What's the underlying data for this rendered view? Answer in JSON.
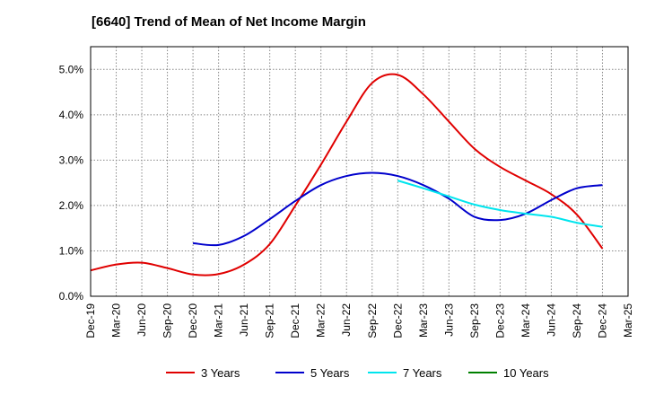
{
  "chart_data": {
    "type": "line",
    "title": "[6640]  Trend of Mean of Net Income Margin",
    "xlabel": "",
    "ylabel": "",
    "ylim": [
      0,
      5.5
    ],
    "y_ticks": [
      0,
      1,
      2,
      3,
      4,
      5
    ],
    "y_tick_labels": [
      "0.0%",
      "1.0%",
      "2.0%",
      "3.0%",
      "4.0%",
      "5.0%"
    ],
    "x_ticks": [
      "Dec-19",
      "Mar-20",
      "Jun-20",
      "Sep-20",
      "Dec-20",
      "Mar-21",
      "Jun-21",
      "Sep-21",
      "Dec-21",
      "Mar-22",
      "Jun-22",
      "Sep-22",
      "Dec-22",
      "Mar-23",
      "Jun-23",
      "Sep-23",
      "Dec-23",
      "Mar-24",
      "Jun-24",
      "Sep-24",
      "Dec-24",
      "Mar-25"
    ],
    "grid": true,
    "legend_position": "bottom",
    "series": [
      {
        "name": "3 Years",
        "color": "#e00000",
        "x": [
          "Dec-19",
          "Mar-20",
          "Jun-20",
          "Sep-20",
          "Dec-20",
          "Mar-21",
          "Jun-21",
          "Sep-21",
          "Dec-21",
          "Mar-22",
          "Jun-22",
          "Sep-22",
          "Dec-22",
          "Mar-23",
          "Jun-23",
          "Sep-23",
          "Dec-23",
          "Mar-24",
          "Jun-24",
          "Sep-24",
          "Dec-24"
        ],
        "values": [
          0.57,
          0.7,
          0.74,
          0.62,
          0.48,
          0.49,
          0.7,
          1.15,
          2.0,
          2.9,
          3.85,
          4.7,
          4.88,
          4.45,
          3.85,
          3.25,
          2.85,
          2.55,
          2.25,
          1.8,
          1.05
        ]
      },
      {
        "name": "5 Years",
        "color": "#0000cc",
        "x": [
          "Dec-20",
          "Mar-21",
          "Jun-21",
          "Sep-21",
          "Dec-21",
          "Mar-22",
          "Jun-22",
          "Sep-22",
          "Dec-22",
          "Mar-23",
          "Jun-23",
          "Sep-23",
          "Dec-23",
          "Mar-24",
          "Jun-24",
          "Sep-24",
          "Dec-24"
        ],
        "values": [
          1.17,
          1.13,
          1.33,
          1.7,
          2.1,
          2.45,
          2.65,
          2.72,
          2.65,
          2.45,
          2.15,
          1.75,
          1.68,
          1.82,
          2.12,
          2.38,
          2.45
        ]
      },
      {
        "name": "7 Years",
        "color": "#00e5ee",
        "x": [
          "Dec-22",
          "Mar-23",
          "Jun-23",
          "Sep-23",
          "Dec-23",
          "Mar-24",
          "Jun-24",
          "Sep-24",
          "Dec-24"
        ],
        "values": [
          2.55,
          2.38,
          2.2,
          2.02,
          1.9,
          1.82,
          1.75,
          1.62,
          1.53
        ]
      },
      {
        "name": "10 Years",
        "color": "#008000",
        "x": [],
        "values": []
      }
    ]
  }
}
